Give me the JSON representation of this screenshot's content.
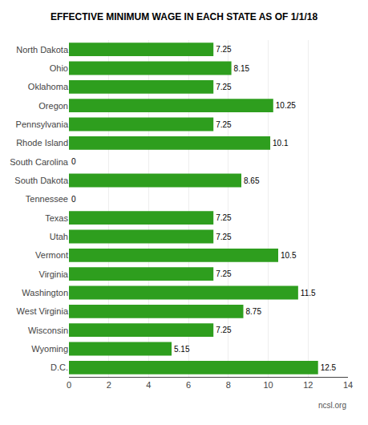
{
  "chart_data": {
    "type": "bar",
    "orientation": "horizontal",
    "title": "EFFECTIVE MINIMUM WAGE IN EACH STATE AS OF 1/1/18",
    "categories": [
      "North Dakota",
      "Ohio",
      "Oklahoma",
      "Oregon",
      "Pennsylvania",
      "Rhode Island",
      "South Carolina",
      "South Dakota",
      "Tennessee",
      "Texas",
      "Utah",
      "Vermont",
      "Virginia",
      "Washington",
      "West Virginia",
      "Wisconsin",
      "Wyoming",
      "D.C."
    ],
    "values": [
      7.25,
      8.15,
      7.25,
      10.25,
      7.25,
      10.1,
      0,
      8.65,
      0,
      7.25,
      7.25,
      10.5,
      7.25,
      11.5,
      8.75,
      7.25,
      5.15,
      12.5
    ],
    "color": "#2E9E1E",
    "xlim": [
      0,
      14
    ],
    "xticks": [
      0,
      2,
      4,
      6,
      8,
      10,
      12,
      14
    ],
    "grid": true,
    "data_labels": true,
    "annotations": [
      "ncsl.org"
    ]
  }
}
